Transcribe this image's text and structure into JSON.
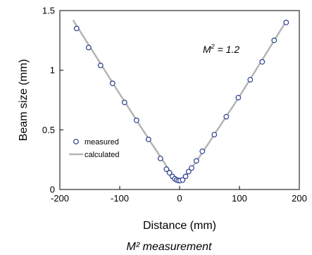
{
  "chart_data": {
    "type": "scatter",
    "caption": "M² measurement",
    "annotation": {
      "m": "M",
      "sup": "2",
      "rest": " = 1.2"
    },
    "xlabel": "Distance (mm)",
    "ylabel": "Beam size (mm)",
    "xlim": [
      -200,
      200
    ],
    "ylim": [
      0,
      1.5
    ],
    "xticks": [
      -200,
      -100,
      0,
      100,
      200
    ],
    "yticks": [
      0,
      0.5,
      1,
      1.5
    ],
    "xtick_labels": [
      "-200",
      "-100",
      "0",
      "100",
      "200"
    ],
    "ytick_labels": [
      "0",
      "0.5",
      "1",
      "1.5"
    ],
    "grid": false,
    "legend": "left",
    "series": [
      {
        "name": "measured",
        "kind": "markers",
        "color": "#2b3f8c",
        "points": [
          [
            -172,
            1.35
          ],
          [
            -152,
            1.19
          ],
          [
            -132,
            1.04
          ],
          [
            -112,
            0.89
          ],
          [
            -92,
            0.73
          ],
          [
            -72,
            0.58
          ],
          [
            -52,
            0.42
          ],
          [
            -32,
            0.26
          ],
          [
            -22,
            0.17
          ],
          [
            -17,
            0.14
          ],
          [
            -12,
            0.11
          ],
          [
            -8,
            0.09
          ],
          [
            -5,
            0.08
          ],
          [
            -2,
            0.075
          ],
          [
            1,
            0.075
          ],
          [
            5,
            0.08
          ],
          [
            10,
            0.11
          ],
          [
            15,
            0.15
          ],
          [
            20,
            0.18
          ],
          [
            28,
            0.24
          ],
          [
            38,
            0.32
          ],
          [
            58,
            0.46
          ],
          [
            78,
            0.61
          ],
          [
            98,
            0.77
          ],
          [
            118,
            0.92
          ],
          [
            138,
            1.07
          ],
          [
            158,
            1.25
          ],
          [
            178,
            1.4
          ]
        ]
      },
      {
        "name": "calculated",
        "kind": "line",
        "color": "#b4b4b4",
        "points": [
          [
            -178,
            1.42
          ],
          [
            -100,
            0.8
          ],
          [
            -50,
            0.41
          ],
          [
            -30,
            0.26
          ],
          [
            -20,
            0.18
          ],
          [
            -12,
            0.12
          ],
          [
            -6,
            0.09
          ],
          [
            0,
            0.075
          ],
          [
            6,
            0.09
          ],
          [
            12,
            0.12
          ],
          [
            20,
            0.18
          ],
          [
            30,
            0.25
          ],
          [
            50,
            0.4
          ],
          [
            100,
            0.78
          ],
          [
            178,
            1.41
          ]
        ]
      }
    ]
  }
}
